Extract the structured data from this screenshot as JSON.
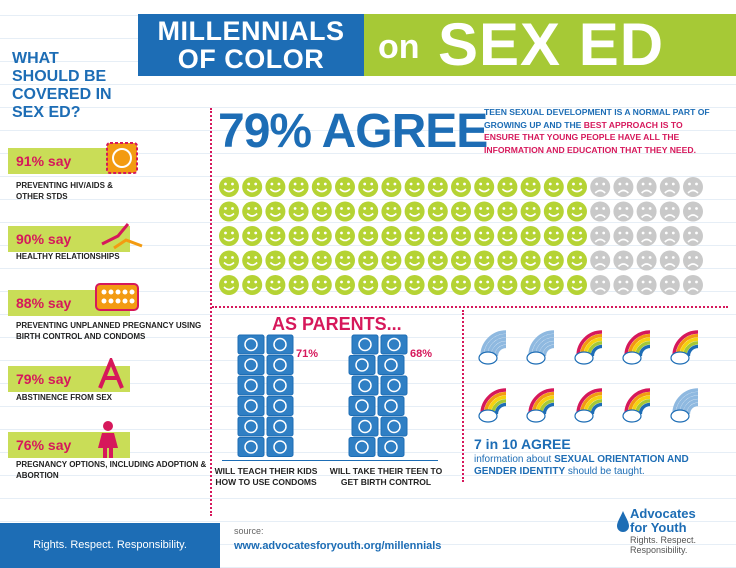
{
  "header": {
    "line1": "MILLENNIALS",
    "line2": "OF COLOR",
    "on": "on",
    "sex_ed": "SEX ED"
  },
  "question": "WHAT SHOULD BE COVERED IN SEX ED?",
  "topics": [
    {
      "pct": "91% say",
      "label": "PREVENTING HIV/AIDS & OTHER STDS",
      "icon": "condom-wrapper-icon"
    },
    {
      "pct": "90% say",
      "label": "HEALTHY RELATIONSHIPS",
      "icon": "holding-hands-icon"
    },
    {
      "pct": "88% say",
      "label": "PREVENTING UNPLANNED PREGNANCY USING BIRTH CONTROL AND CONDOMS",
      "icon": "pill-pack-icon"
    },
    {
      "pct": "79% say",
      "label": "ABSTINENCE FROM SEX",
      "icon": "letter-a-icon"
    },
    {
      "pct": "76% say",
      "label": "PREGNANCY OPTIONS, INCLUDING ADOPTION & ABORTION",
      "icon": "woman-icon"
    }
  ],
  "agree": {
    "headline": "79% AGREE",
    "text_a": "TEEN SEXUAL DEVELOPMENT IS A NORMAL PART OF GROWING UP AND THE ",
    "text_b": "BEST APPROACH IS TO ENSURE THAT YOUNG PEOPLE HAVE ALL THE INFORMATION AND EDUCATION THAT THEY NEED.",
    "faces_happy_per_row": 16,
    "faces_per_row": 21,
    "face_rows": 5,
    "happy_color": "#b5d334",
    "sad_color": "#c9c9c9"
  },
  "parents": {
    "title": "AS PARENTS...",
    "teach_pct": "71%",
    "teach_label": "WILL TEACH THEIR KIDS HOW TO USE CONDOMS",
    "birth_pct": "68%",
    "birth_label": "WILL TAKE THEIR TEEN TO GET BIRTH CONTROL"
  },
  "orientation": {
    "headline": "7 in 10 AGREE",
    "text_a": "information about ",
    "text_b": "SEXUAL ORIENTATION AND GENDER IDENTITY",
    "text_c": " should be taught.",
    "rainbows_total": 10,
    "rainbows_colored": 7
  },
  "footer": {
    "tagline": "Rights. Respect. Responsibility.",
    "source_label": "source:",
    "url": "www.advocatesforyouth.org/millennials",
    "brand_line1": "Advocates",
    "brand_line2": "for Youth",
    "brand_tagline": "Rights. Respect. Responsibility."
  },
  "colors": {
    "blue": "#1d6db5",
    "green": "#a6c936",
    "pink": "#d6185b"
  }
}
